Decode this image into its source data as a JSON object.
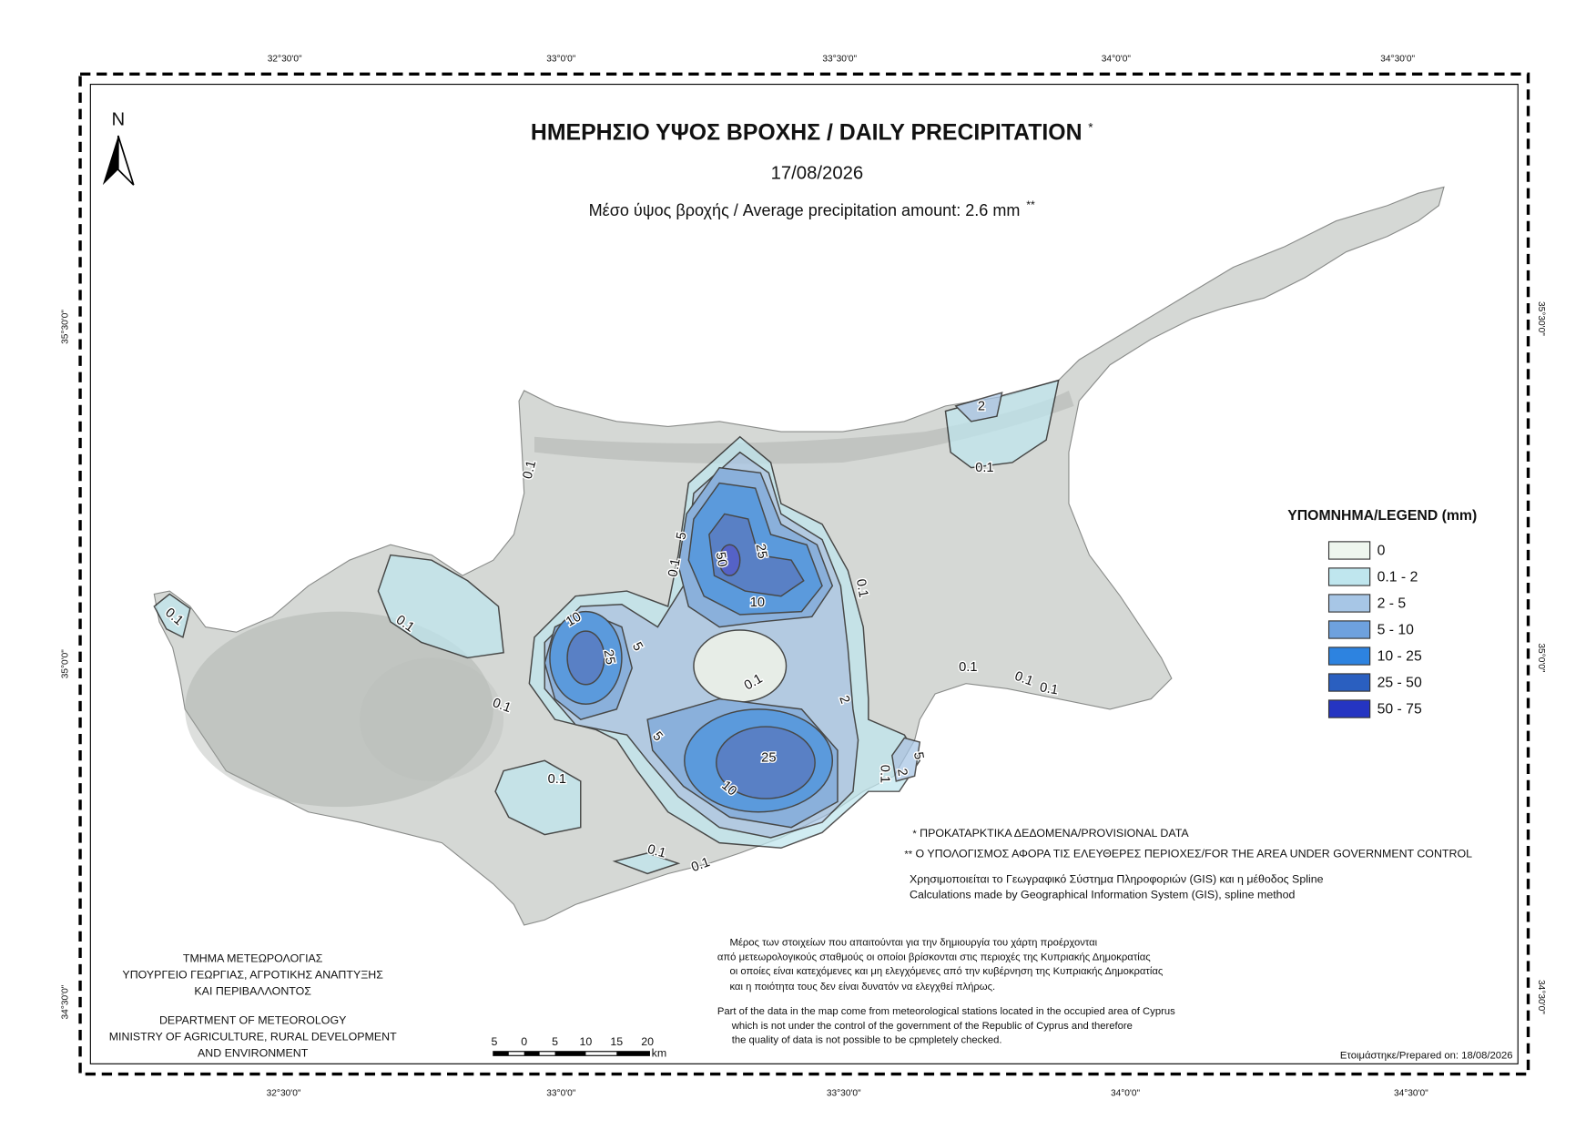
{
  "title": "ΗΜΕΡΗΣΙΟ ΥΨΟΣ ΒΡΟΧΗΣ / DAILY PRECIPITATION",
  "title_mark": "*",
  "date": "17/08/2026",
  "subtitle": "Μέσο ύψος βροχής / Average precipitation amount: 2.6 mm",
  "subtitle_mark": "**",
  "north": "N",
  "graticule": {
    "top": [
      "32°30'0\"",
      "33°0'0\"",
      "33°30'0\"",
      "34°0'0\"",
      "34°30'0\""
    ],
    "bottom": [
      "32°30'0\"",
      "33°0'0\"",
      "33°30'0\"",
      "34°0'0\"",
      "34°30'0\""
    ],
    "left": [
      "35°30'0\"",
      "35°0'0\"",
      "34°30'0\""
    ],
    "right": [
      "35°30'0\"",
      "35°0'0\"",
      "34°30'0\""
    ]
  },
  "legend": {
    "title": "ΥΠΟΜΝΗΜΑ/LEGEND (mm)",
    "items": [
      {
        "label": "0",
        "color": "#eef6ee"
      },
      {
        "label": "0.1 - 2",
        "color": "#bfe6ee"
      },
      {
        "label": "2 - 5",
        "color": "#a7c6e6"
      },
      {
        "label": "5 - 10",
        "color": "#6ea1de"
      },
      {
        "label": "10 - 25",
        "color": "#2d83e0"
      },
      {
        "label": "25 - 50",
        "color": "#2a5fc0"
      },
      {
        "label": "50 - 75",
        "color": "#2535c2"
      }
    ]
  },
  "contour_labels": [
    "2",
    "0.1",
    "0.1",
    "0.1",
    "0.1",
    "0.1",
    "0.1",
    "0.1",
    "0.1",
    "5",
    "0.1",
    "50",
    "25",
    "10",
    "0.1",
    "10",
    "25",
    "5",
    "0.1",
    "2",
    "5",
    "25",
    "10",
    "2",
    "5",
    "0.1",
    "0.1",
    "0.1",
    "0.1"
  ],
  "notes": [
    {
      "mark": "*",
      "text": "ΠΡΟΚΑΤΑΡΚΤΙΚΑ ΔΕΔΟΜΕΝΑ/PROVISIONAL DATA"
    },
    {
      "mark": "**",
      "text": "Ο ΥΠΟΛΟΓΙΣΜΟΣ ΑΦΟΡΑ ΤΙΣ ΕΛΕΥΘΕΡΕΣ ΠΕΡΙΟΧΕΣ/FOR THE AREA UNDER GOVERNMENT CONTROL"
    }
  ],
  "method": [
    "Χρησιμοποιείται το Γεωγραφικό Σύστημα Πληροφοριών (GIS) και η μέθοδος Spline",
    "Calculations made by Geographical Information System (GIS), spline method"
  ],
  "credits": [
    "ΤΜΗΜΑ ΜΕΤΕΩΡΟΛΟΓΙΑΣ",
    "ΥΠΟΥΡΓΕΙΟ ΓΕΩΡΓΙΑΣ, ΑΓΡΟΤΙΚΗΣ ΑΝΑΠΤΥΞΗΣ",
    "ΚΑΙ ΠΕΡΙΒΑΛΛΟΝΤΟΣ",
    "DEPARTMENT OF METEOROLOGY",
    "MINISTRY OF AGRICULTURE, RURAL DEVELOPMENT",
    "AND ENVIRONMENT"
  ],
  "disclaimer": {
    "greek": [
      "Μέρος των στοιχείων που απαιτούνται για την δημιουργία του χάρτη προέρχονται",
      "από μετεωρολογικούς σταθμούς οι οποίοι βρίσκονται στις περιοχές της Κυπριακής Δημοκρατίας",
      "οι οποίες είναι κατεχόμενες και μη ελεγχόμενες από την κυβέρνηση της Κυπριακής Δημοκρατίας",
      "και η ποιότητα τους δεν είναι δυνατόν να ελεγχθεί πλήρως."
    ],
    "english": [
      "Part of the data in the map come from meteorological stations located in the occupied area of Cyprus",
      "which is not under the control of the government of the Republic of Cyprus and therefore",
      "the quality of data is not possible to be cpmpletely checked."
    ]
  },
  "scale_bar": {
    "labels": [
      "5",
      "0",
      "5",
      "10",
      "15",
      "20"
    ],
    "unit": "km"
  },
  "prepared": "Ετοιμάστηκε/Prepared on: 18/08/2026"
}
